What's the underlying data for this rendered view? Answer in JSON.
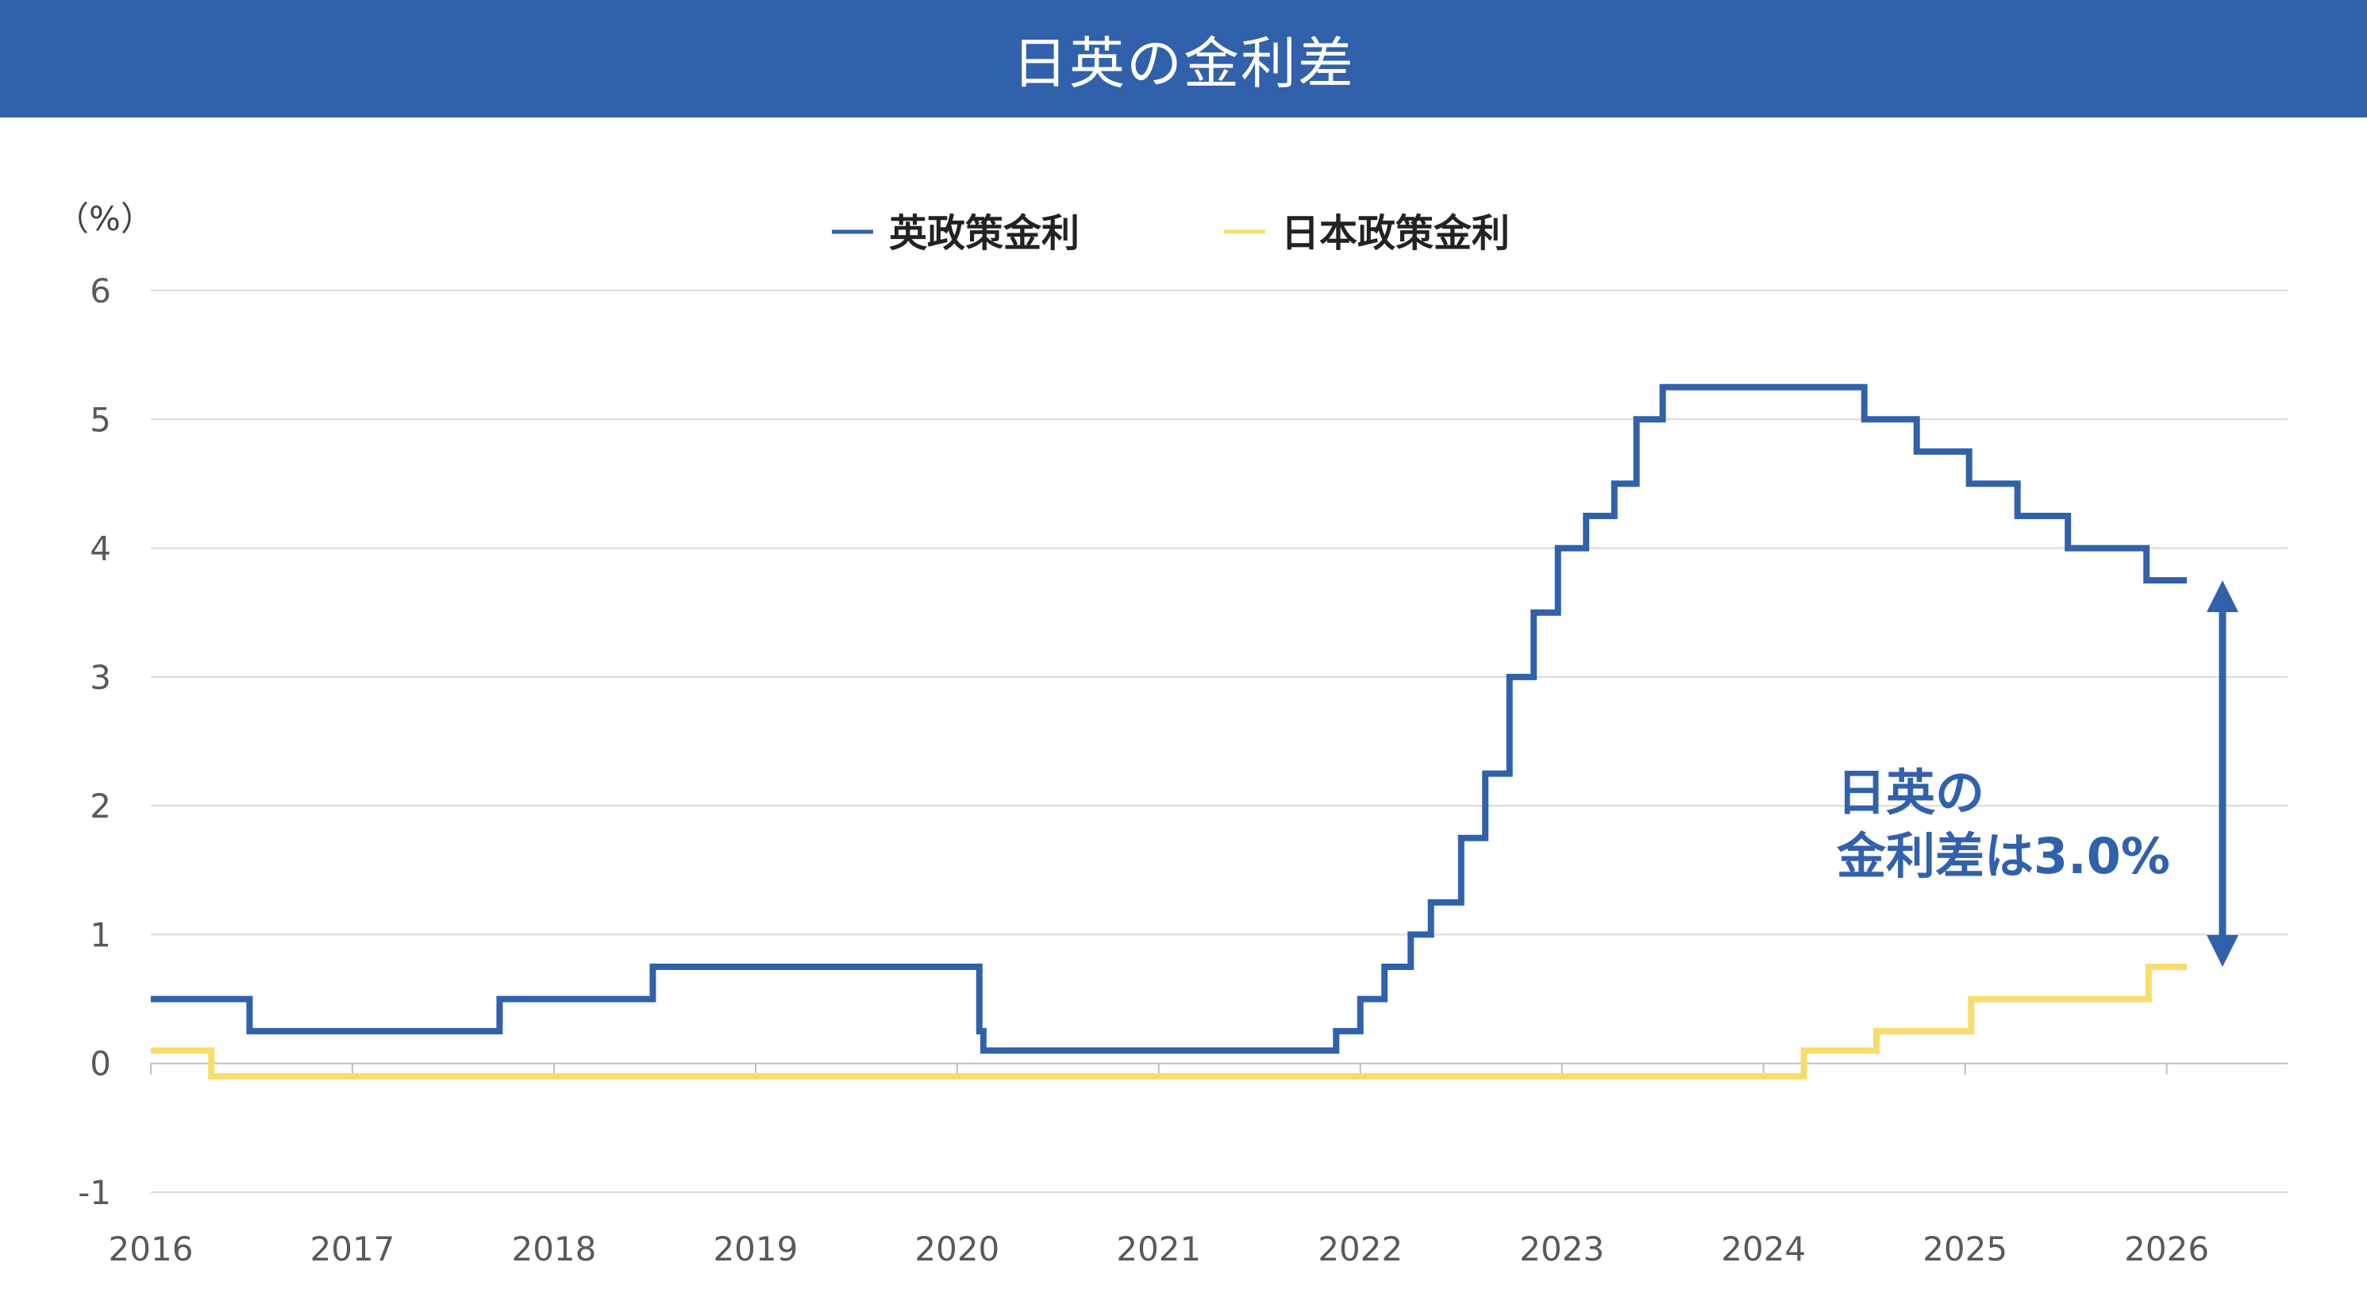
{
  "header": {
    "title": "日英の金利差"
  },
  "colors": {
    "header_bg": "#3161ab",
    "uk": "#3161ab",
    "jp": "#f7dd6c",
    "grid": "#d9d9d9"
  },
  "chart_data": {
    "type": "line",
    "step": true,
    "ylabel": "（%）",
    "ylim": [
      -1,
      6
    ],
    "yticks": [
      "6",
      "5",
      "4",
      "3",
      "2",
      "1",
      "0",
      "-1"
    ],
    "xlim": [
      2016,
      2026.6
    ],
    "xticks": [
      "2016",
      "2017",
      "2018",
      "2019",
      "2020",
      "2021",
      "2022",
      "2023",
      "2024",
      "2025",
      "2026"
    ],
    "grid": true,
    "legend_position": "top",
    "series": [
      {
        "name": "英政策金利",
        "color": "#3161ab",
        "points": [
          [
            2016.0,
            0.5
          ],
          [
            2016.49,
            0.5
          ],
          [
            2016.49,
            0.25
          ],
          [
            2017.73,
            0.25
          ],
          [
            2017.73,
            0.5
          ],
          [
            2018.49,
            0.5
          ],
          [
            2018.49,
            0.75
          ],
          [
            2020.11,
            0.75
          ],
          [
            2020.11,
            0.25
          ],
          [
            2020.13,
            0.25
          ],
          [
            2020.13,
            0.1
          ],
          [
            2021.88,
            0.1
          ],
          [
            2021.88,
            0.25
          ],
          [
            2022.0,
            0.25
          ],
          [
            2022.0,
            0.5
          ],
          [
            2022.12,
            0.5
          ],
          [
            2022.12,
            0.75
          ],
          [
            2022.25,
            0.75
          ],
          [
            2022.25,
            1.0
          ],
          [
            2022.35,
            1.0
          ],
          [
            2022.35,
            1.25
          ],
          [
            2022.5,
            1.25
          ],
          [
            2022.5,
            1.75
          ],
          [
            2022.62,
            1.75
          ],
          [
            2022.62,
            2.25
          ],
          [
            2022.74,
            2.25
          ],
          [
            2022.74,
            3.0
          ],
          [
            2022.86,
            3.0
          ],
          [
            2022.86,
            3.5
          ],
          [
            2022.98,
            3.5
          ],
          [
            2022.98,
            4.0
          ],
          [
            2023.12,
            4.0
          ],
          [
            2023.12,
            4.25
          ],
          [
            2023.26,
            4.25
          ],
          [
            2023.26,
            4.5
          ],
          [
            2023.37,
            4.5
          ],
          [
            2023.37,
            5.0
          ],
          [
            2023.5,
            5.0
          ],
          [
            2023.5,
            5.25
          ],
          [
            2024.5,
            5.25
          ],
          [
            2024.5,
            5.0
          ],
          [
            2024.76,
            5.0
          ],
          [
            2024.76,
            4.75
          ],
          [
            2025.02,
            4.75
          ],
          [
            2025.02,
            4.5
          ],
          [
            2025.26,
            4.5
          ],
          [
            2025.26,
            4.25
          ],
          [
            2025.51,
            4.25
          ],
          [
            2025.51,
            4.0
          ],
          [
            2025.9,
            4.0
          ],
          [
            2025.9,
            3.75
          ],
          [
            2026.1,
            3.75
          ]
        ]
      },
      {
        "name": "日本政策金利",
        "color": "#f7dd6c",
        "points": [
          [
            2016.0,
            0.1
          ],
          [
            2016.3,
            0.1
          ],
          [
            2016.3,
            -0.1
          ],
          [
            2024.2,
            -0.1
          ],
          [
            2024.2,
            0.1
          ],
          [
            2024.56,
            0.1
          ],
          [
            2024.56,
            0.25
          ],
          [
            2025.03,
            0.25
          ],
          [
            2025.03,
            0.5
          ],
          [
            2025.91,
            0.5
          ],
          [
            2025.91,
            0.75
          ],
          [
            2026.1,
            0.75
          ]
        ]
      }
    ],
    "annotation": {
      "lines": [
        "日英の",
        "金利差は3.0%"
      ],
      "arrow_from": 3.75,
      "arrow_to": 0.75
    }
  }
}
